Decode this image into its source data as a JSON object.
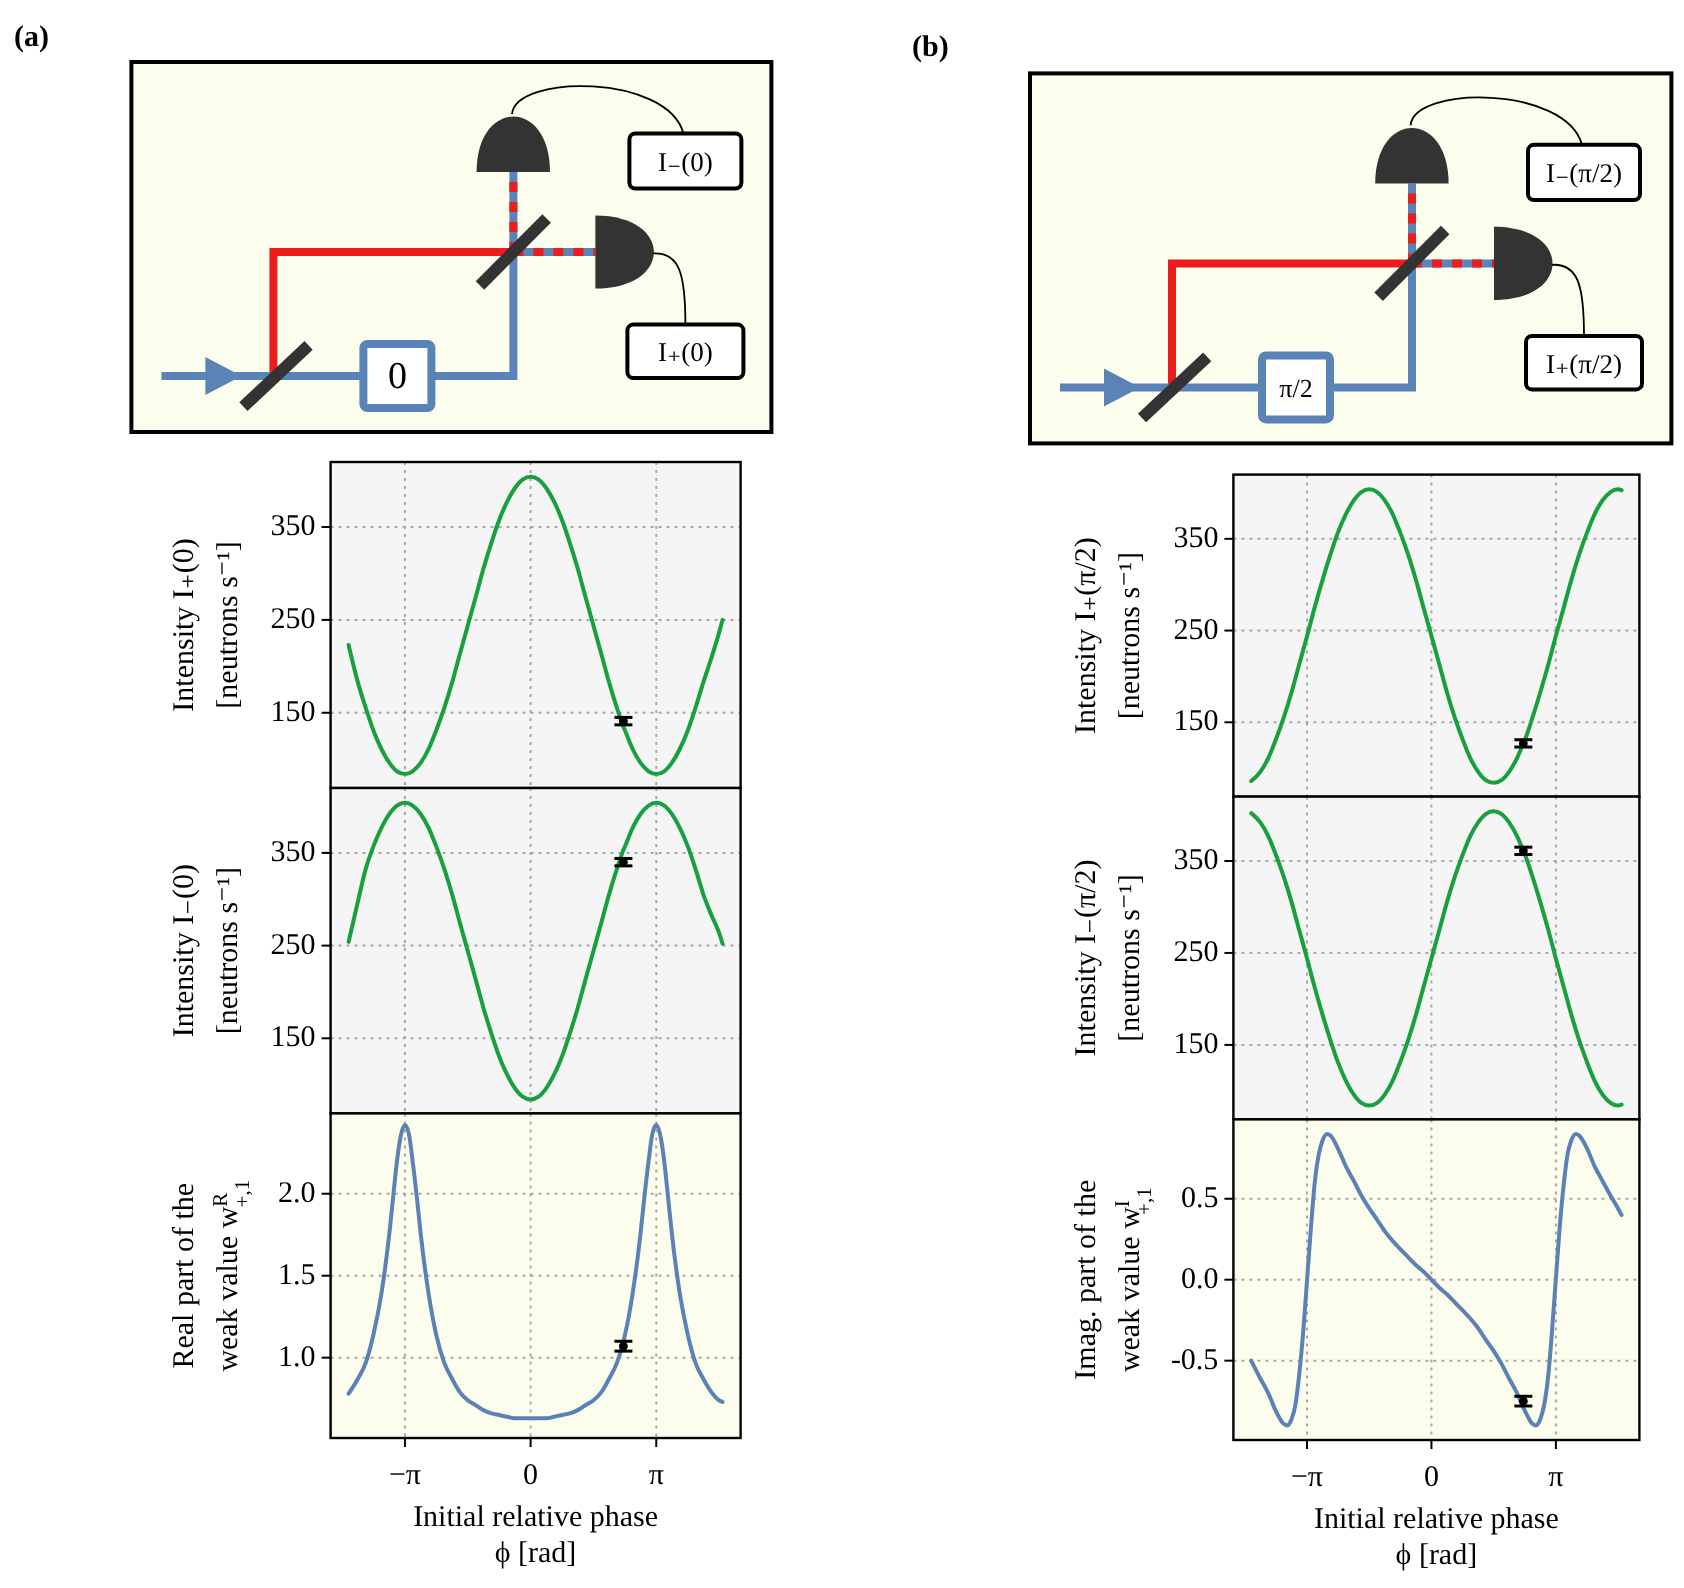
{
  "chart_data": [
    {
      "type": "other",
      "title": "(a)",
      "annotations": [
        "0",
        "I₋(0)",
        "I₊(0)"
      ]
    },
    {
      "type": "line",
      "ylabel": "Intensity I₊(0)\n[neutrons s⁻¹]",
      "xlim": [
        -5.0,
        5.25
      ],
      "ylim": [
        69,
        420
      ],
      "xticks": [
        {
          "value": -3.1416,
          "label": null
        },
        {
          "value": 0,
          "label": null
        },
        {
          "value": 3.1416,
          "label": null
        }
      ],
      "yticks": [
        150,
        250,
        350
      ],
      "grid": true,
      "tick_labels": "y",
      "x": [
        -4.55,
        -4.32,
        -4.12,
        -3.93,
        -3.73,
        -3.53,
        -3.34,
        -3.14,
        -2.95,
        -2.75,
        -2.55,
        -2.36,
        -2.16,
        -1.96,
        -1.77,
        -1.57,
        -1.37,
        -1.18,
        -0.98,
        -0.79,
        -0.59,
        -0.39,
        -0.2,
        0,
        0.2,
        0.39,
        0.59,
        0.79,
        0.98,
        1.18,
        1.37,
        1.57,
        1.77,
        1.96,
        2.16,
        2.32,
        2.36,
        2.55,
        2.75,
        2.95,
        3.14,
        3.34,
        3.53,
        3.73,
        3.93,
        4.12,
        4.32,
        4.52,
        4.71,
        4.8
      ],
      "series": [
        {
          "color": "#17a03d",
          "values": [
            223,
            183,
            155,
            131,
            111,
            96,
            87,
            84,
            87,
            96,
            111,
            131,
            155,
            183,
            213,
            244,
            275,
            305,
            333,
            357,
            377,
            392,
            401,
            404,
            401,
            392,
            377,
            357,
            333,
            305,
            275,
            244,
            213,
            183,
            155,
            135,
            131,
            111,
            96,
            87,
            84,
            87,
            96,
            111,
            131,
            155,
            183,
            209,
            236,
            250
          ]
        },
        {
          "type": "scatter",
          "color": "#000000",
          "marker": "circle",
          "values": [
            null,
            null,
            null,
            null,
            null,
            null,
            null,
            null,
            null,
            null,
            null,
            null,
            null,
            null,
            null,
            null,
            null,
            null,
            null,
            null,
            null,
            null,
            null,
            null,
            null,
            null,
            null,
            null,
            null,
            null,
            null,
            null,
            null,
            null,
            null,
            141,
            null,
            null,
            null,
            null,
            null,
            null,
            null,
            null,
            null,
            null,
            null,
            null,
            null,
            null
          ],
          "errors": [
            null,
            null,
            null,
            null,
            null,
            null,
            null,
            null,
            null,
            null,
            null,
            null,
            null,
            null,
            null,
            null,
            null,
            null,
            null,
            null,
            null,
            null,
            null,
            null,
            null,
            null,
            null,
            null,
            null,
            null,
            null,
            null,
            null,
            null,
            null,
            4,
            null,
            null,
            null,
            null,
            null,
            null,
            null,
            null,
            null,
            null,
            null,
            null,
            null,
            null
          ]
        }
      ]
    },
    {
      "type": "line",
      "ylabel": "Intensity I₋(0)\n[neutrons s⁻¹]",
      "xlim": [
        -5.0,
        5.25
      ],
      "ylim": [
        69,
        420
      ],
      "xticks": [
        {
          "value": -3.1416,
          "label": null
        },
        {
          "value": 0,
          "label": null
        },
        {
          "value": 3.1416,
          "label": null
        }
      ],
      "yticks": [
        150,
        250,
        350
      ],
      "grid": true,
      "tick_labels": "y",
      "x": [
        -4.55,
        -4.32,
        -4.12,
        -3.93,
        -3.73,
        -3.53,
        -3.34,
        -3.14,
        -2.95,
        -2.75,
        -2.55,
        -2.36,
        -2.16,
        -1.96,
        -1.77,
        -1.57,
        -1.37,
        -1.18,
        -0.98,
        -0.79,
        -0.59,
        -0.39,
        -0.2,
        0,
        0.2,
        0.39,
        0.59,
        0.79,
        0.98,
        1.18,
        1.37,
        1.57,
        1.77,
        1.96,
        2.16,
        2.32,
        2.36,
        2.55,
        2.75,
        2.95,
        3.14,
        3.34,
        3.53,
        3.73,
        3.93,
        4.12,
        4.32,
        4.52,
        4.71,
        4.8
      ],
      "series": [
        {
          "color": "#17a03d",
          "values": [
            254,
            297,
            333,
            357,
            377,
            392,
            401,
            404,
            401,
            392,
            377,
            357,
            333,
            305,
            275,
            244,
            213,
            183,
            155,
            131,
            111,
            96,
            87,
            84,
            87,
            96,
            111,
            131,
            155,
            183,
            213,
            244,
            275,
            305,
            333,
            353,
            357,
            377,
            392,
            401,
            404,
            401,
            392,
            377,
            357,
            333,
            305,
            283,
            264,
            252
          ]
        },
        {
          "type": "scatter",
          "color": "#000000",
          "marker": "circle",
          "values": [
            null,
            null,
            null,
            null,
            null,
            null,
            null,
            null,
            null,
            null,
            null,
            null,
            null,
            null,
            null,
            null,
            null,
            null,
            null,
            null,
            null,
            null,
            null,
            null,
            null,
            null,
            null,
            null,
            null,
            null,
            null,
            null,
            null,
            null,
            null,
            340,
            null,
            null,
            null,
            null,
            null,
            null,
            null,
            null,
            null,
            null,
            null,
            null,
            null,
            null
          ],
          "errors": [
            null,
            null,
            null,
            null,
            null,
            null,
            null,
            null,
            null,
            null,
            null,
            null,
            null,
            null,
            null,
            null,
            null,
            null,
            null,
            null,
            null,
            null,
            null,
            null,
            null,
            null,
            null,
            null,
            null,
            null,
            null,
            null,
            null,
            null,
            null,
            4,
            null,
            null,
            null,
            null,
            null,
            null,
            null,
            null,
            null,
            null,
            null,
            null,
            null,
            null
          ]
        }
      ]
    },
    {
      "type": "line",
      "ylabel": "Real part of the\nweak value w$^{R}$$_{+,1}$",
      "xlabel": "Initial relative phase\nϕ [rad]",
      "xlim": [
        -5.0,
        5.25
      ],
      "ylim": [
        0.51,
        2.49
      ],
      "xticks": [
        {
          "value": -3.1416,
          "label": "−π"
        },
        0,
        {
          "value": 3.1416,
          "label": "π"
        }
      ],
      "yticks": [
        {
          "value": 1,
          "label": "1.0"
        },
        1.5,
        {
          "value": 2,
          "label": "2.0"
        }
      ],
      "grid": true,
      "x": [
        -4.55,
        -4.32,
        -4.12,
        -3.93,
        -3.73,
        -3.53,
        -3.44,
        -3.34,
        -3.24,
        -3.14,
        -3.04,
        -2.95,
        -2.84,
        -2.75,
        -2.55,
        -2.36,
        -2.16,
        -1.96,
        -1.77,
        -1.57,
        -1.37,
        -1.18,
        -0.98,
        -0.79,
        -0.59,
        -0.39,
        -0.2,
        0,
        0.2,
        0.39,
        0.59,
        0.79,
        0.98,
        1.18,
        1.37,
        1.57,
        1.77,
        1.96,
        2.16,
        2.32,
        2.36,
        2.55,
        2.75,
        2.84,
        2.95,
        3.04,
        3.14,
        3.24,
        3.34,
        3.44,
        3.53,
        3.73,
        3.93,
        4.12,
        4.32,
        4.52,
        4.71,
        4.8
      ],
      "series": [
        {
          "color": "#5a82b4",
          "values": [
            0.78,
            0.87,
            0.97,
            1.14,
            1.39,
            1.76,
            1.97,
            2.2,
            2.36,
            2.42,
            2.36,
            2.2,
            1.97,
            1.76,
            1.39,
            1.14,
            0.97,
            0.87,
            0.79,
            0.74,
            0.71,
            0.68,
            0.66,
            0.65,
            0.64,
            0.63,
            0.63,
            0.63,
            0.63,
            0.63,
            0.64,
            0.65,
            0.66,
            0.68,
            0.71,
            0.74,
            0.79,
            0.87,
            0.97,
            1.1,
            1.14,
            1.39,
            1.76,
            1.97,
            2.2,
            2.36,
            2.42,
            2.36,
            2.2,
            1.97,
            1.76,
            1.39,
            1.14,
            0.97,
            0.87,
            0.79,
            0.74,
            0.73
          ]
        },
        {
          "type": "scatter",
          "color": "#000000",
          "marker": "circle",
          "values": [
            null,
            null,
            null,
            null,
            null,
            null,
            null,
            null,
            null,
            null,
            null,
            null,
            null,
            null,
            null,
            null,
            null,
            null,
            null,
            null,
            null,
            null,
            null,
            null,
            null,
            null,
            null,
            null,
            null,
            null,
            null,
            null,
            null,
            null,
            null,
            null,
            null,
            null,
            null,
            1.07,
            null,
            null,
            null,
            null,
            null,
            null,
            null,
            null,
            null,
            null,
            null,
            null,
            null,
            null,
            null,
            null,
            null,
            null
          ],
          "errors": [
            null,
            null,
            null,
            null,
            null,
            null,
            null,
            null,
            null,
            null,
            null,
            null,
            null,
            null,
            null,
            null,
            null,
            null,
            null,
            null,
            null,
            null,
            null,
            null,
            null,
            null,
            null,
            null,
            null,
            null,
            null,
            null,
            null,
            null,
            null,
            null,
            null,
            null,
            null,
            0.03,
            null,
            null,
            null,
            null,
            null,
            null,
            null,
            null,
            null,
            null,
            null,
            null,
            null,
            null,
            null,
            null,
            null,
            null
          ]
        }
      ]
    },
    {
      "type": "other",
      "title": "(b)",
      "annotations": [
        "π/2",
        "I₋(π/2)",
        "I₊(π/2)"
      ]
    },
    {
      "type": "line",
      "ylabel": "Intensity I₊(π/2)\n[neutrons s⁻¹]",
      "xlim": [
        -5.0,
        5.25
      ],
      "ylim": [
        69,
        420
      ],
      "xticks": [
        {
          "value": -3.1416,
          "label": null
        },
        {
          "value": 0,
          "label": null
        },
        {
          "value": 3.1416,
          "label": null
        }
      ],
      "yticks": [
        150,
        250,
        350
      ],
      "grid": true,
      "tick_labels": "y",
      "x": [
        -4.55,
        -4.32,
        -4.12,
        -3.93,
        -3.73,
        -3.53,
        -3.34,
        -3.14,
        -2.95,
        -2.75,
        -2.55,
        -2.36,
        -2.16,
        -1.96,
        -1.77,
        -1.57,
        -1.37,
        -1.18,
        -0.98,
        -0.79,
        -0.59,
        -0.39,
        -0.2,
        0,
        0.2,
        0.39,
        0.59,
        0.79,
        0.98,
        1.18,
        1.37,
        1.57,
        1.77,
        1.96,
        2.16,
        2.32,
        2.36,
        2.55,
        2.75,
        2.95,
        3.14,
        3.34,
        3.53,
        3.73,
        3.93,
        4.12,
        4.32,
        4.52,
        4.71,
        4.8
      ],
      "series": [
        {
          "color": "#17a03d",
          "values": [
            86,
            96,
            111,
            131,
            155,
            183,
            213,
            244,
            275,
            305,
            333,
            357,
            377,
            392,
            401,
            404,
            401,
            392,
            377,
            357,
            333,
            305,
            275,
            244,
            213,
            183,
            155,
            131,
            111,
            96,
            87,
            84,
            87,
            96,
            111,
            127,
            131,
            155,
            183,
            213,
            244,
            275,
            305,
            333,
            357,
            377,
            392,
            401,
            404,
            403
          ]
        },
        {
          "type": "scatter",
          "color": "#000000",
          "marker": "circle",
          "values": [
            null,
            null,
            null,
            null,
            null,
            null,
            null,
            null,
            null,
            null,
            null,
            null,
            null,
            null,
            null,
            null,
            null,
            null,
            null,
            null,
            null,
            null,
            null,
            null,
            null,
            null,
            null,
            null,
            null,
            null,
            null,
            null,
            null,
            null,
            null,
            127,
            null,
            null,
            null,
            null,
            null,
            null,
            null,
            null,
            null,
            null,
            null,
            null,
            null,
            null
          ],
          "errors": [
            null,
            null,
            null,
            null,
            null,
            null,
            null,
            null,
            null,
            null,
            null,
            null,
            null,
            null,
            null,
            null,
            null,
            null,
            null,
            null,
            null,
            null,
            null,
            null,
            null,
            null,
            null,
            null,
            null,
            null,
            null,
            null,
            null,
            null,
            null,
            4,
            null,
            null,
            null,
            null,
            null,
            null,
            null,
            null,
            null,
            null,
            null,
            null,
            null,
            null
          ]
        }
      ]
    },
    {
      "type": "line",
      "ylabel": "Intensity I₋(π/2)\n[neutrons s⁻¹]",
      "xlim": [
        -5.0,
        5.25
      ],
      "ylim": [
        69,
        420
      ],
      "xticks": [
        {
          "value": -3.1416,
          "label": null
        },
        {
          "value": 0,
          "label": null
        },
        {
          "value": 3.1416,
          "label": null
        }
      ],
      "yticks": [
        150,
        250,
        350
      ],
      "grid": true,
      "tick_labels": "y",
      "x": [
        -4.55,
        -4.32,
        -4.12,
        -3.93,
        -3.73,
        -3.53,
        -3.34,
        -3.14,
        -2.95,
        -2.75,
        -2.55,
        -2.36,
        -2.16,
        -1.96,
        -1.77,
        -1.57,
        -1.37,
        -1.18,
        -0.98,
        -0.79,
        -0.59,
        -0.39,
        -0.2,
        0,
        0.2,
        0.39,
        0.59,
        0.79,
        0.98,
        1.18,
        1.37,
        1.57,
        1.77,
        1.96,
        2.16,
        2.32,
        2.36,
        2.55,
        2.75,
        2.95,
        3.14,
        3.34,
        3.53,
        3.73,
        3.93,
        4.12,
        4.32,
        4.52,
        4.71,
        4.8
      ],
      "series": [
        {
          "color": "#17a03d",
          "values": [
            402,
            392,
            377,
            357,
            333,
            305,
            275,
            244,
            213,
            183,
            155,
            131,
            111,
            96,
            87,
            84,
            87,
            96,
            111,
            131,
            155,
            183,
            213,
            244,
            275,
            305,
            333,
            357,
            377,
            392,
            401,
            404,
            401,
            392,
            377,
            361,
            357,
            333,
            305,
            275,
            244,
            213,
            183,
            155,
            131,
            111,
            96,
            87,
            84,
            85
          ]
        },
        {
          "type": "scatter",
          "color": "#000000",
          "marker": "circle",
          "values": [
            null,
            null,
            null,
            null,
            null,
            null,
            null,
            null,
            null,
            null,
            null,
            null,
            null,
            null,
            null,
            null,
            null,
            null,
            null,
            null,
            null,
            null,
            null,
            null,
            null,
            null,
            null,
            null,
            null,
            null,
            null,
            null,
            null,
            null,
            null,
            361,
            null,
            null,
            null,
            null,
            null,
            null,
            null,
            null,
            null,
            null,
            null,
            null,
            null,
            null
          ],
          "errors": [
            null,
            null,
            null,
            null,
            null,
            null,
            null,
            null,
            null,
            null,
            null,
            null,
            null,
            null,
            null,
            null,
            null,
            null,
            null,
            null,
            null,
            null,
            null,
            null,
            null,
            null,
            null,
            null,
            null,
            null,
            null,
            null,
            null,
            null,
            null,
            4,
            null,
            null,
            null,
            null,
            null,
            null,
            null,
            null,
            null,
            null,
            null,
            null,
            null,
            null
          ]
        }
      ]
    },
    {
      "type": "line",
      "ylabel": "Imag. part of the\nweak value w$^{I}$$_{+,1}$",
      "xlabel": "Initial relative phase\nϕ [rad]",
      "xlim": [
        -5.0,
        5.25
      ],
      "ylim": [
        -0.99,
        0.99
      ],
      "xticks": [
        {
          "value": -3.1416,
          "label": "−π"
        },
        0,
        {
          "value": 3.1416,
          "label": "π"
        }
      ],
      "yticks": [
        {
          "value": -0.5,
          "label": "-0.5"
        },
        {
          "value": 0,
          "label": "0.0"
        },
        0.5
      ],
      "grid": true,
      "x": [
        -4.55,
        -4.32,
        -4.12,
        -3.93,
        -3.73,
        -3.65,
        -3.53,
        -3.44,
        -3.34,
        -3.24,
        -3.14,
        -3.04,
        -2.95,
        -2.84,
        -2.75,
        -2.63,
        -2.55,
        -2.36,
        -2.16,
        -1.96,
        -1.77,
        -1.57,
        -1.37,
        -1.18,
        -0.98,
        -0.79,
        -0.59,
        -0.39,
        -0.2,
        0,
        0.2,
        0.39,
        0.59,
        0.79,
        0.98,
        1.18,
        1.37,
        1.57,
        1.77,
        1.96,
        2.16,
        2.32,
        2.36,
        2.55,
        2.63,
        2.75,
        2.84,
        2.95,
        3.04,
        3.14,
        3.24,
        3.34,
        3.44,
        3.53,
        3.65,
        3.73,
        3.93,
        4.12,
        4.32,
        4.52,
        4.71,
        4.8
      ],
      "series": [
        {
          "color": "#5a82b4",
          "values": [
            -0.5,
            -0.61,
            -0.7,
            -0.81,
            -0.89,
            -0.9,
            -0.86,
            -0.78,
            -0.59,
            -0.33,
            0,
            0.33,
            0.59,
            0.78,
            0.86,
            0.9,
            0.89,
            0.81,
            0.7,
            0.61,
            0.52,
            0.44,
            0.37,
            0.3,
            0.24,
            0.19,
            0.14,
            0.09,
            0.05,
            0,
            -0.05,
            -0.09,
            -0.14,
            -0.19,
            -0.24,
            -0.3,
            -0.37,
            -0.44,
            -0.52,
            -0.61,
            -0.7,
            -0.79,
            -0.81,
            -0.89,
            -0.9,
            -0.86,
            -0.78,
            -0.59,
            -0.33,
            0,
            0.33,
            0.59,
            0.78,
            0.86,
            0.9,
            0.89,
            0.81,
            0.7,
            0.61,
            0.52,
            0.44,
            0.4
          ]
        },
        {
          "type": "scatter",
          "color": "#000000",
          "marker": "circle",
          "values": [
            null,
            null,
            null,
            null,
            null,
            null,
            null,
            null,
            null,
            null,
            null,
            null,
            null,
            null,
            null,
            null,
            null,
            null,
            null,
            null,
            null,
            null,
            null,
            null,
            null,
            null,
            null,
            null,
            null,
            null,
            null,
            null,
            null,
            null,
            null,
            null,
            null,
            null,
            null,
            null,
            null,
            -0.75,
            null,
            null,
            null,
            null,
            null,
            null,
            null,
            null,
            null,
            null,
            null,
            null,
            null,
            null,
            null,
            null,
            null,
            null,
            null,
            null
          ],
          "errors": [
            null,
            null,
            null,
            null,
            null,
            null,
            null,
            null,
            null,
            null,
            null,
            null,
            null,
            null,
            null,
            null,
            null,
            null,
            null,
            null,
            null,
            null,
            null,
            null,
            null,
            null,
            null,
            null,
            null,
            null,
            null,
            null,
            null,
            null,
            null,
            null,
            null,
            null,
            null,
            null,
            null,
            0.03,
            null,
            null,
            null,
            null,
            null,
            null,
            null,
            null,
            null,
            null,
            null,
            null,
            null,
            null,
            null,
            null,
            null,
            null,
            null,
            null
          ]
        }
      ]
    }
  ]
}
